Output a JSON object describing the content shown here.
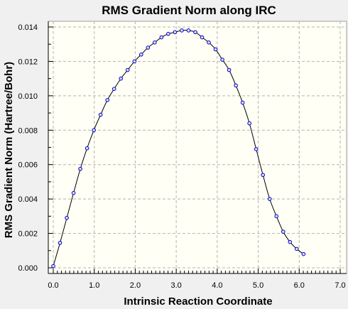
{
  "colors": {
    "background": "#f0f0f0",
    "plot_background": "#fffff5",
    "grid": "#b4b4b4",
    "line": "#000000",
    "marker_stroke": "#0000c8",
    "marker_fill": "#dcdcf5"
  },
  "chart_data": {
    "type": "line",
    "title": "RMS Gradient Norm along IRC",
    "xlabel": "Intrinsic Reaction Coordinate",
    "ylabel": "RMS Gradient Norm (Hartree/Bohr)",
    "xlim": [
      0,
      7
    ],
    "ylim": [
      0,
      0.014
    ],
    "x_ticks": [
      "0.0",
      "1.0",
      "2.0",
      "3.0",
      "4.0",
      "5.0",
      "6.0",
      "7.0"
    ],
    "y_ticks": [
      "0.000",
      "0.002",
      "0.004",
      "0.006",
      "0.008",
      "0.010",
      "0.012",
      "0.014"
    ],
    "grid": true,
    "markers": "circle",
    "series": [
      {
        "x": [
          0.0,
          0.165,
          0.33,
          0.495,
          0.66,
          0.825,
          0.99,
          1.155,
          1.32,
          1.485,
          1.65,
          1.815,
          1.98,
          2.145,
          2.31,
          2.475,
          2.64,
          2.805,
          2.97,
          3.135,
          3.3,
          3.465,
          3.63,
          3.795,
          3.96,
          4.125,
          4.29,
          4.455,
          4.62,
          4.785,
          4.95,
          5.115,
          5.28,
          5.445,
          5.61,
          5.775,
          5.94,
          6.105
        ],
        "y": [
          0.0001,
          0.00145,
          0.0029,
          0.00435,
          0.00575,
          0.00695,
          0.008,
          0.0089,
          0.00975,
          0.0104,
          0.011,
          0.0115,
          0.012,
          0.0124,
          0.0128,
          0.0131,
          0.0134,
          0.0136,
          0.0137,
          0.0138,
          0.0138,
          0.0137,
          0.0134,
          0.0131,
          0.0127,
          0.0121,
          0.0115,
          0.0106,
          0.0096,
          0.0084,
          0.0069,
          0.0054,
          0.004,
          0.003,
          0.0021,
          0.0015,
          0.0011,
          0.0008
        ]
      }
    ]
  }
}
